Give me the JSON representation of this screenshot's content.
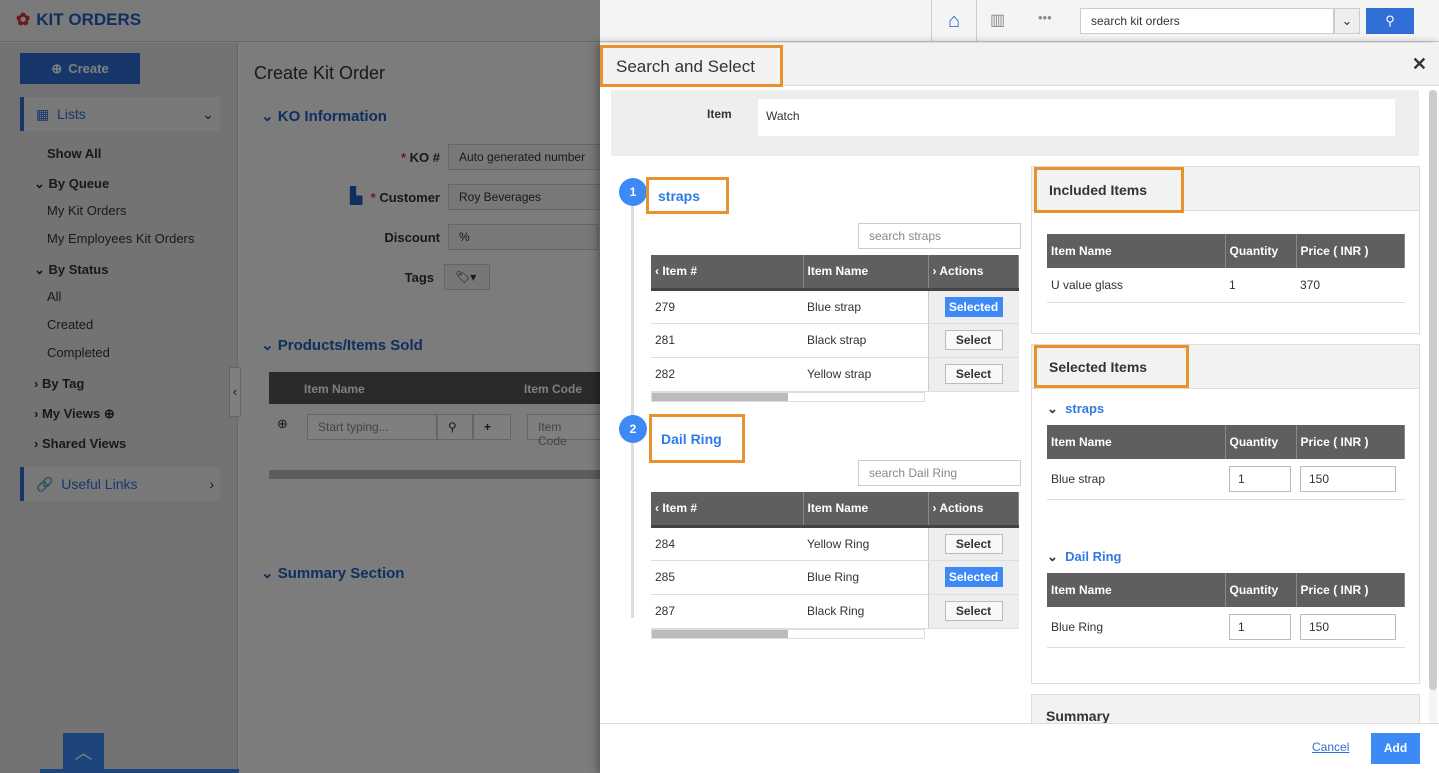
{
  "app": {
    "title": "KIT ORDERS",
    "search_placeholder": "search kit orders"
  },
  "sidebar": {
    "create": "Create",
    "lists": "Lists",
    "show_all": "Show All",
    "by_queue": "By Queue",
    "my_kit_orders": "My Kit Orders",
    "my_employees": "My Employees Kit Orders",
    "by_status": "By Status",
    "all": "All",
    "created": "Created",
    "completed": "Completed",
    "by_tag": "By Tag",
    "my_views": "My Views",
    "shared_views": "Shared Views",
    "useful_links": "Useful Links"
  },
  "form": {
    "title": "Create Kit Order",
    "ko_section": "KO Information",
    "ko_label": "KO #",
    "ko_value": "Auto generated number",
    "customer_label": "Customer",
    "customer_value": "Roy Beverages",
    "discount_label": "Discount",
    "discount_value": "%",
    "tags_label": "Tags",
    "products_section": "Products/Items Sold",
    "col_item_name": "Item Name",
    "col_item_code": "Item Code",
    "start_typing": "Start typing...",
    "item_code_ph": "Item Code",
    "summary_section": "Summary Section"
  },
  "modal": {
    "title": "Search and Select",
    "item_label": "Item",
    "item_value": "Watch",
    "groups": [
      {
        "num": "1",
        "name": "straps",
        "search": "search straps",
        "rows": [
          {
            "id": "279",
            "name": "Blue strap",
            "action": "Selected",
            "on": true
          },
          {
            "id": "281",
            "name": "Black strap",
            "action": "Select",
            "on": false
          },
          {
            "id": "282",
            "name": "Yellow strap",
            "action": "Select",
            "on": false
          }
        ]
      },
      {
        "num": "2",
        "name": "Dail Ring",
        "search": "search Dail Ring",
        "rows": [
          {
            "id": "284",
            "name": "Yellow Ring",
            "action": "Select",
            "on": false
          },
          {
            "id": "285",
            "name": "Blue Ring",
            "action": "Selected",
            "on": true
          },
          {
            "id": "287",
            "name": "Black Ring",
            "action": "Select",
            "on": false
          }
        ]
      }
    ],
    "cols": {
      "item_no": "Item #",
      "item_name": "Item Name",
      "actions": "Actions",
      "quantity": "Quantity",
      "price": "Price ( INR )"
    },
    "included": {
      "title": "Included Items",
      "rows": [
        {
          "name": "U value glass",
          "qty": "1",
          "price": "370"
        }
      ]
    },
    "selected": {
      "title": "Selected Items",
      "groups": [
        {
          "name": "straps",
          "item": "Blue strap",
          "qty": "1",
          "price": "150"
        },
        {
          "name": "Dail Ring",
          "item": "Blue Ring",
          "qty": "1",
          "price": "150"
        }
      ]
    },
    "summary": "Summary",
    "cancel": "Cancel",
    "add": "Add"
  },
  "colors": {
    "accent": "#3d8af7",
    "highlight": "#e8912f"
  }
}
